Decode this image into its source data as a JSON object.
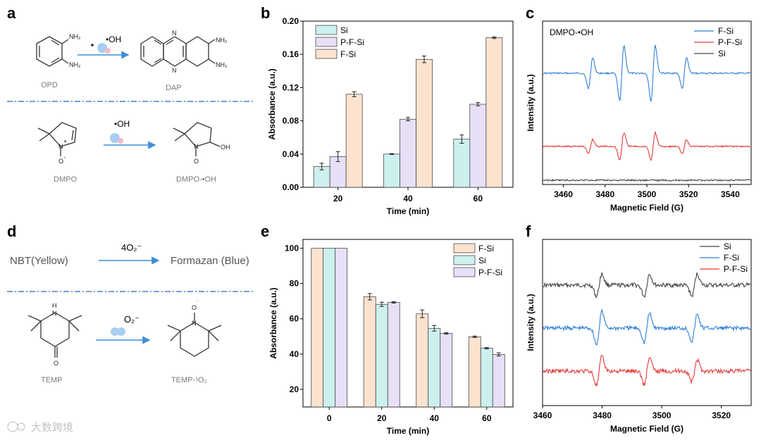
{
  "panel_labels": [
    "a",
    "b",
    "c",
    "d",
    "e",
    "f"
  ],
  "panel_a": {
    "reaction1": {
      "reactant": "OPD",
      "product": "DAP",
      "radical": "•OH",
      "amine": "NH₂"
    },
    "reaction2": {
      "reactant": "DMPO",
      "product": "DMPO-•OH",
      "radical": "•OH",
      "n_plus": "N",
      "plus": "+",
      "o_minus": "O",
      "minus": "-",
      "oh_group": "OH",
      "n_atom": "N"
    }
  },
  "panel_d": {
    "equation": {
      "left": "NBT(Yellow)",
      "reagent": "4O₂⁻",
      "right": "Formazan  (Blue)"
    },
    "reaction": {
      "reactant": "TEMP",
      "product": "TEMP-¹O₂",
      "reagent": "O₂⁻",
      "n_h": "N",
      "h": "H",
      "ketone_o": "O",
      "n_o": "N",
      "o_radical": "O",
      "dot": "˙"
    }
  },
  "watermark": "大数跨境",
  "colors": {
    "si_bar": "#ccf0ee",
    "pfsi_bar": "#e7e0f6",
    "fsi_bar": "#fce3cf",
    "epr_blue": "#2f7fd8",
    "epr_red": "#e23a3a",
    "epr_gray": "#444444",
    "dash": "#4a7fc8",
    "arrow": "#3f8ed6"
  },
  "chart_data": [
    {
      "id": "b",
      "type": "bar",
      "categories": [
        "20",
        "40",
        "60"
      ],
      "series": [
        {
          "name": "Si",
          "values": [
            0.025,
            0.04,
            0.058
          ],
          "errors": [
            0.004,
            0.0005,
            0.005
          ]
        },
        {
          "name": "P-F-Si",
          "values": [
            0.037,
            0.082,
            0.1
          ],
          "errors": [
            0.006,
            0.002,
            0.002
          ]
        },
        {
          "name": "F-Si",
          "values": [
            0.112,
            0.154,
            0.18
          ],
          "errors": [
            0.003,
            0.004,
            0.001
          ]
        }
      ],
      "xlabel": "Time (min)",
      "ylabel": "Absorbance (a.u.)",
      "ylim": [
        0,
        0.2
      ],
      "yticks": [
        "0.00",
        "0.04",
        "0.08",
        "0.12",
        "0.16",
        "0.20"
      ],
      "legend": [
        "Si",
        "P-F-Si",
        "F-Si"
      ]
    },
    {
      "id": "c",
      "type": "line",
      "annotation": "DMPO-•OH",
      "xlabel": "Magnetic Field (G)",
      "ylabel": "Intensity (a.u.)",
      "xlim": [
        3450,
        3550
      ],
      "xticks": [
        "3460",
        "3480",
        "3500",
        "3520",
        "3540"
      ],
      "peaks": [
        3473,
        3488,
        3503,
        3518
      ],
      "series": [
        {
          "name": "F-Si",
          "amplitudes": [
            1.0,
            1.8,
            1.8,
            1.0
          ]
        },
        {
          "name": "P-F-Si",
          "amplitudes": [
            0.45,
            0.9,
            0.9,
            0.45
          ]
        },
        {
          "name": "Si",
          "amplitudes": [
            0,
            0,
            0,
            0
          ]
        }
      ],
      "legend": [
        "F-Si",
        "P-F-Si",
        "Si"
      ]
    },
    {
      "id": "e",
      "type": "bar",
      "categories": [
        "0",
        "20",
        "40",
        "60"
      ],
      "series": [
        {
          "name": "F-Si",
          "values": [
            100,
            72.5,
            62.8,
            49.8
          ],
          "errors": [
            0,
            1.8,
            2.2,
            0.4
          ]
        },
        {
          "name": "Si",
          "values": [
            100,
            68.2,
            54.6,
            43.3
          ],
          "errors": [
            0,
            1.2,
            1.6,
            0.4
          ]
        },
        {
          "name": "P-F-Si",
          "values": [
            100,
            69.3,
            51.7,
            39.8
          ],
          "errors": [
            0,
            0.4,
            0.4,
            0.9
          ]
        }
      ],
      "xlabel": "Time (min)",
      "ylabel": "Absorbance (a.u.)",
      "ylim": [
        10,
        105
      ],
      "yticks": [
        "20",
        "40",
        "60",
        "80",
        "100"
      ],
      "legend": [
        "F-Si",
        "Si",
        "P-F-Si"
      ]
    },
    {
      "id": "f",
      "type": "line",
      "xlabel": "Magnetic Field (G)",
      "ylabel": "Intensity (a.u.)",
      "xlim": [
        3460,
        3530
      ],
      "xticks": [
        "3460",
        "3480",
        "3500",
        "3520"
      ],
      "peaks": [
        3479,
        3495,
        3511
      ],
      "series": [
        {
          "name": "Si",
          "amplitudes": [
            1.0,
            1.0,
            1.0
          ]
        },
        {
          "name": "F-Si",
          "amplitudes": [
            1.5,
            1.3,
            1.2
          ]
        },
        {
          "name": "P-F-Si",
          "amplitudes": [
            1.3,
            1.2,
            1.0
          ]
        }
      ],
      "legend": [
        "Si",
        "F-Si",
        "P-F-Si"
      ]
    }
  ]
}
